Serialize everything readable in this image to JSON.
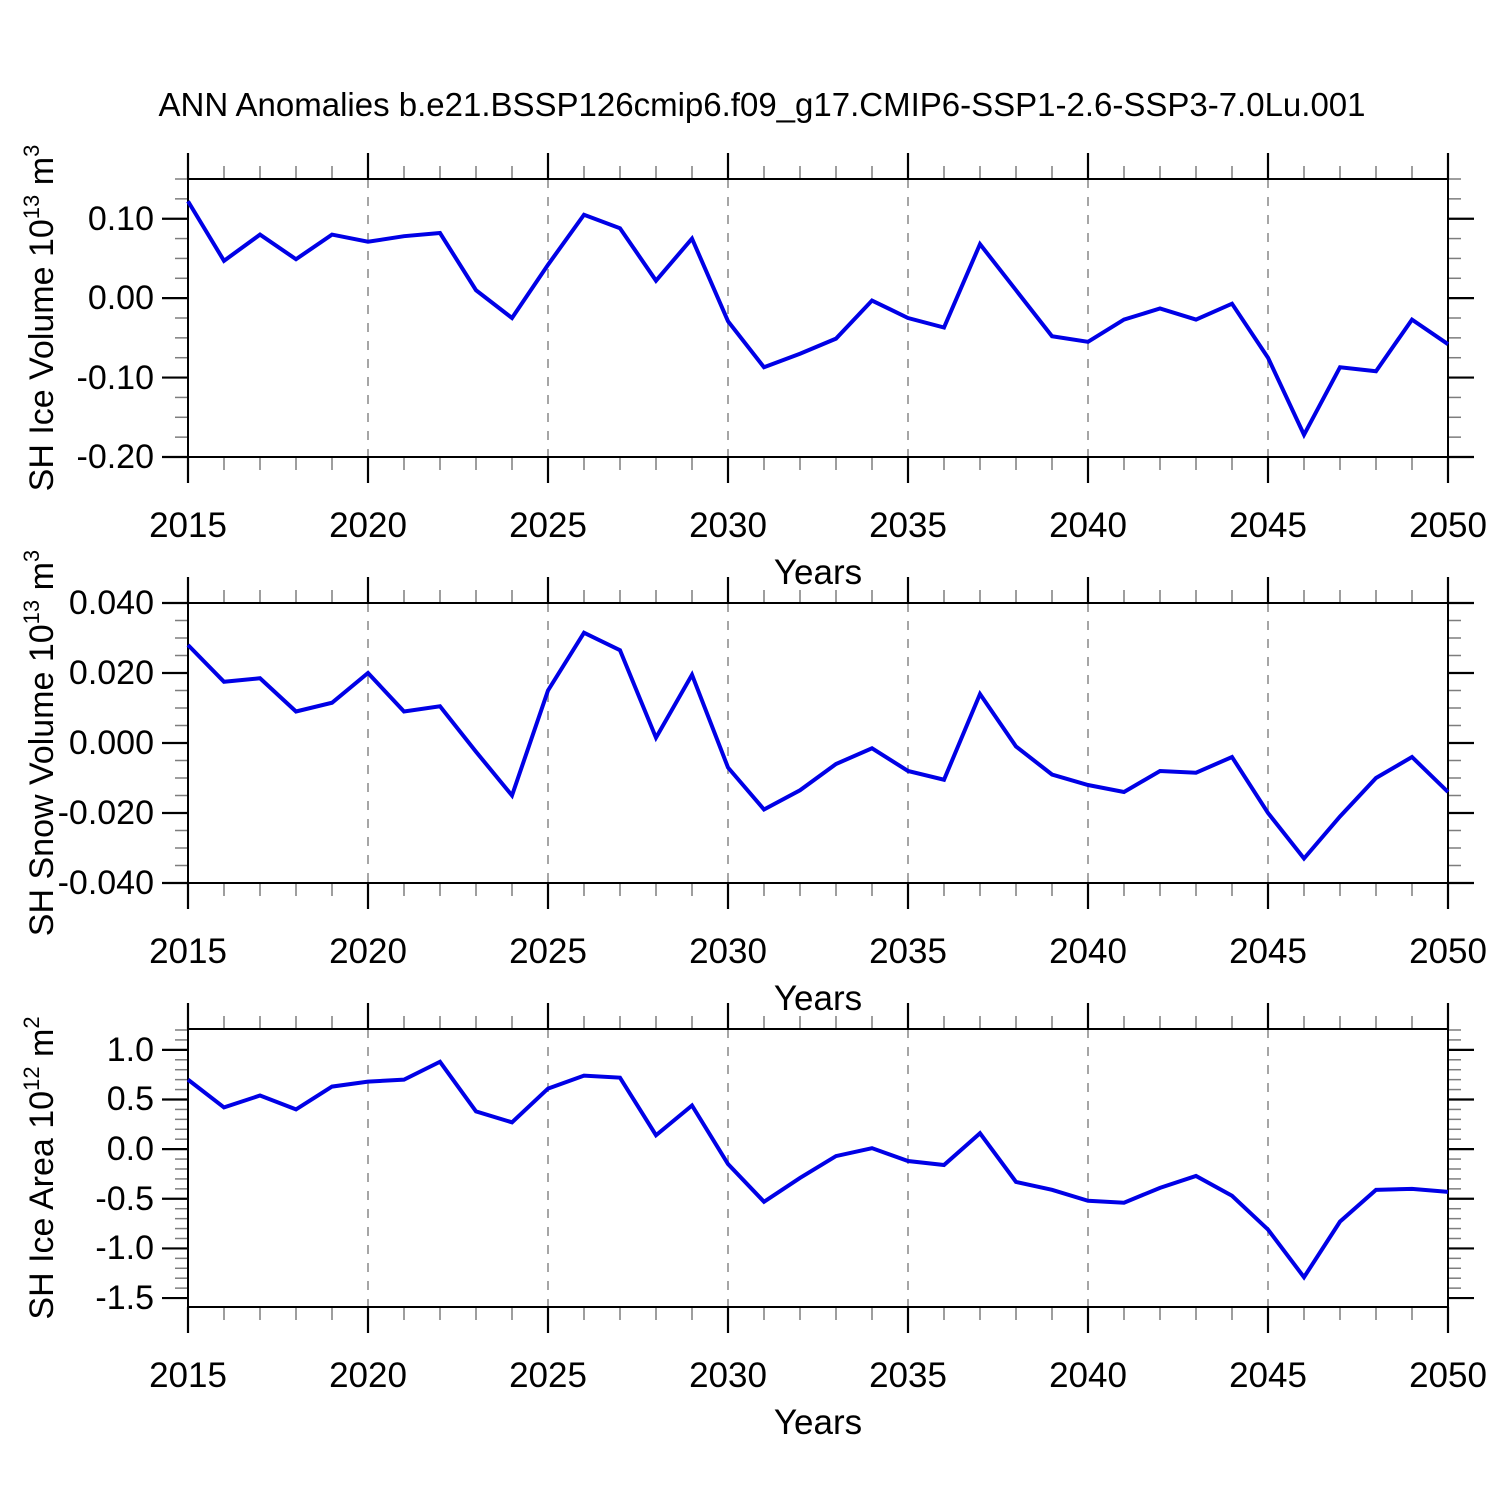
{
  "title": "ANN Anomalies b.e21.BSSP126cmip6.f09_g17.CMIP6-SSP1-2.6-SSP3-7.0Lu.001",
  "xlabel": "Years",
  "colors": {
    "line": "#0000e6",
    "gridline": "#a6a6a6",
    "frame": "#000000",
    "minor_tick": "#7d7d7d"
  },
  "gridline_years": [
    2020,
    2025,
    2030,
    2035,
    2040,
    2045
  ],
  "xticks": [
    2015,
    2020,
    2025,
    2030,
    2035,
    2040,
    2045,
    2050
  ],
  "chart_data": [
    {
      "type": "line",
      "title": "",
      "ylabel": "SH Ice Volume 10^13 m^3",
      "ylabel_parts": {
        "prefix": "SH Ice Volume 10",
        "exp": "13",
        "unit": " m",
        "unit_exp": "3"
      },
      "xlabel": "Years",
      "ylim": [
        -0.2,
        0.15
      ],
      "minor_step": 0.025,
      "yticks": [
        {
          "v": 0.1,
          "label": "0.10"
        },
        {
          "v": 0.0,
          "label": "0.00"
        },
        {
          "v": -0.1,
          "label": "-0.10"
        },
        {
          "v": -0.2,
          "label": "-0.20"
        }
      ],
      "x": [
        2015,
        2016,
        2017,
        2018,
        2019,
        2020,
        2021,
        2022,
        2023,
        2024,
        2025,
        2026,
        2027,
        2028,
        2029,
        2030,
        2031,
        2032,
        2033,
        2034,
        2035,
        2036,
        2037,
        2038,
        2039,
        2040,
        2041,
        2042,
        2043,
        2044,
        2045,
        2046,
        2047,
        2048,
        2049,
        2050
      ],
      "values": [
        0.122,
        0.047,
        0.08,
        0.049,
        0.08,
        0.071,
        0.078,
        0.082,
        0.01,
        -0.025,
        0.042,
        0.105,
        0.088,
        0.022,
        0.075,
        -0.029,
        -0.087,
        -0.07,
        -0.051,
        -0.003,
        -0.025,
        -0.037,
        0.068,
        0.01,
        -0.048,
        -0.055,
        -0.027,
        -0.013,
        -0.027,
        -0.007,
        -0.075,
        -0.172,
        -0.087,
        -0.092,
        -0.027,
        -0.058
      ]
    },
    {
      "type": "line",
      "title": "",
      "ylabel": "SH Snow Volume 10^13 m^3",
      "ylabel_parts": {
        "prefix": "SH Snow Volume 10",
        "exp": "13",
        "unit": " m",
        "unit_exp": "3"
      },
      "xlabel": "Years",
      "ylim": [
        -0.04,
        0.04
      ],
      "minor_step": 0.005,
      "yticks": [
        {
          "v": 0.04,
          "label": "0.040"
        },
        {
          "v": 0.02,
          "label": "0.020"
        },
        {
          "v": 0.0,
          "label": "0.000"
        },
        {
          "v": -0.02,
          "label": "-0.020"
        },
        {
          "v": -0.04,
          "label": "-0.040"
        }
      ],
      "x": [
        2015,
        2016,
        2017,
        2018,
        2019,
        2020,
        2021,
        2022,
        2023,
        2024,
        2025,
        2026,
        2027,
        2028,
        2029,
        2030,
        2031,
        2032,
        2033,
        2034,
        2035,
        2036,
        2037,
        2038,
        2039,
        2040,
        2041,
        2042,
        2043,
        2044,
        2045,
        2046,
        2047,
        2048,
        2049,
        2050
      ],
      "values": [
        0.028,
        0.0175,
        0.0185,
        0.009,
        0.0115,
        0.02,
        0.009,
        0.0105,
        -0.0025,
        -0.015,
        0.015,
        0.0315,
        0.0265,
        0.0015,
        0.0195,
        -0.007,
        -0.019,
        -0.0135,
        -0.006,
        -0.0015,
        -0.008,
        -0.0105,
        0.014,
        -0.001,
        -0.009,
        -0.012,
        -0.014,
        -0.008,
        -0.0085,
        -0.004,
        -0.02,
        -0.033,
        -0.021,
        -0.01,
        -0.004,
        -0.014
      ]
    },
    {
      "type": "line",
      "title": "",
      "ylabel": "SH Ice Area 10^12 m^2",
      "ylabel_parts": {
        "prefix": "SH Ice Area 10",
        "exp": "12",
        "unit": " m",
        "unit_exp": "2"
      },
      "xlabel": "Years",
      "ylim": [
        -1.59,
        1.21
      ],
      "minor_step": 0.1,
      "yticks": [
        {
          "v": 1.0,
          "label": "1.0"
        },
        {
          "v": 0.5,
          "label": "0.5"
        },
        {
          "v": 0.0,
          "label": "0.0"
        },
        {
          "v": -0.5,
          "label": "-0.5"
        },
        {
          "v": -1.0,
          "label": "-1.0"
        },
        {
          "v": -1.5,
          "label": "-1.5"
        }
      ],
      "x": [
        2015,
        2016,
        2017,
        2018,
        2019,
        2020,
        2021,
        2022,
        2023,
        2024,
        2025,
        2026,
        2027,
        2028,
        2029,
        2030,
        2031,
        2032,
        2033,
        2034,
        2035,
        2036,
        2037,
        2038,
        2039,
        2040,
        2041,
        2042,
        2043,
        2044,
        2045,
        2046,
        2047,
        2048,
        2049,
        2050
      ],
      "values": [
        0.7,
        0.42,
        0.54,
        0.4,
        0.63,
        0.68,
        0.7,
        0.88,
        0.38,
        0.27,
        0.61,
        0.74,
        0.72,
        0.14,
        0.44,
        -0.15,
        -0.53,
        -0.29,
        -0.07,
        0.01,
        -0.12,
        -0.16,
        0.16,
        -0.33,
        -0.41,
        -0.52,
        -0.54,
        -0.39,
        -0.27,
        -0.47,
        -0.81,
        -1.29,
        -0.73,
        -0.41,
        -0.4,
        -0.43
      ]
    }
  ]
}
